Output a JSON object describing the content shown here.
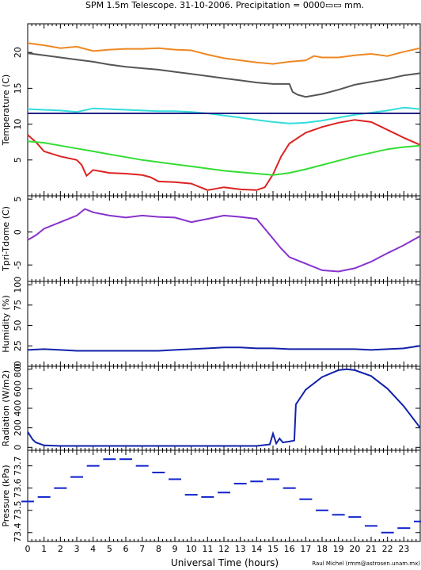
{
  "title": "SPM 1.5m Telescope. 31-10-2006. Precipitation = 0000▭▭ mm.",
  "xlabel": "Universal Time (hours)",
  "credit": "Raul Michel (rmm@astrosen.unam.mx)",
  "chart_data": [
    {
      "type": "line",
      "ylabel": "Temperature (C)",
      "xlim": [
        0,
        24
      ],
      "ylim": [
        0,
        24
      ],
      "yticks": [
        5,
        10,
        15,
        20
      ],
      "series": [
        {
          "color": "#ee8822",
          "x": [
            0,
            1,
            2,
            3,
            4,
            5,
            6,
            7,
            8,
            9,
            10,
            11,
            12,
            13,
            14,
            15,
            16,
            17,
            17.5,
            18,
            19,
            20,
            21,
            22,
            23,
            24
          ],
          "y": [
            21.3,
            21,
            20.6,
            20.8,
            20.2,
            20.4,
            20.5,
            20.5,
            20.6,
            20.4,
            20.3,
            19.7,
            19.2,
            18.9,
            18.6,
            18.4,
            18.7,
            18.9,
            19.5,
            19.3,
            19.3,
            19.6,
            19.8,
            19.5,
            20.1,
            20.6
          ]
        },
        {
          "color": "#555555",
          "x": [
            0,
            1,
            2,
            3,
            4,
            5,
            6,
            7,
            8,
            9,
            10,
            11,
            12,
            13,
            14,
            15,
            16,
            16.2,
            16.5,
            17,
            18,
            19,
            20,
            21,
            22,
            23,
            24
          ],
          "y": [
            19.9,
            19.6,
            19.3,
            19,
            18.7,
            18.3,
            18,
            17.8,
            17.6,
            17.3,
            17,
            16.7,
            16.4,
            16.1,
            15.8,
            15.6,
            15.6,
            14.5,
            14.1,
            13.8,
            14.2,
            14.8,
            15.5,
            15.9,
            16.3,
            16.8,
            17.1
          ]
        },
        {
          "color": "#33dddd",
          "x": [
            0,
            1,
            2,
            3,
            4,
            5,
            6,
            7,
            8,
            9,
            10,
            11,
            12,
            13,
            14,
            15,
            16,
            17,
            18,
            19,
            20,
            21,
            22,
            23,
            24
          ],
          "y": [
            12.1,
            12,
            11.9,
            11.7,
            12.2,
            12.1,
            12,
            11.9,
            11.8,
            11.8,
            11.7,
            11.5,
            11.2,
            10.9,
            10.6,
            10.3,
            10.1,
            10.2,
            10.5,
            10.9,
            11.3,
            11.6,
            11.9,
            12.3,
            12.1
          ]
        },
        {
          "color": "#222288",
          "x": [
            0,
            24
          ],
          "y": [
            11.5,
            11.5
          ]
        },
        {
          "color": "#dd2222",
          "x": [
            0,
            0.5,
            1,
            2,
            3,
            3.3,
            3.6,
            4,
            5,
            6,
            7,
            7.5,
            8,
            9,
            10,
            11,
            12,
            13,
            14,
            14.5,
            15,
            15.5,
            16,
            17,
            18,
            19,
            20,
            21,
            22,
            23,
            24
          ],
          "y": [
            8.5,
            7.5,
            6.2,
            5.5,
            5.0,
            4.3,
            2.8,
            3.6,
            3.2,
            3.1,
            2.9,
            2.6,
            2.0,
            1.9,
            1.7,
            0.8,
            1.2,
            0.9,
            0.8,
            1.2,
            3.0,
            5.5,
            7.3,
            8.8,
            9.6,
            10.2,
            10.6,
            10.3,
            9.2,
            8.1,
            7.1
          ]
        },
        {
          "color": "#33dd33",
          "x": [
            0,
            1,
            2,
            3,
            4,
            5,
            6,
            7,
            8,
            9,
            10,
            11,
            12,
            13,
            14,
            15,
            16,
            17,
            18,
            19,
            20,
            21,
            22,
            23,
            24
          ],
          "y": [
            7.6,
            7.4,
            7.0,
            6.6,
            6.2,
            5.8,
            5.4,
            5.0,
            4.7,
            4.4,
            4.1,
            3.8,
            3.5,
            3.3,
            3.1,
            2.9,
            3.2,
            3.7,
            4.3,
            4.9,
            5.5,
            6.0,
            6.5,
            6.8,
            7.0
          ]
        }
      ]
    },
    {
      "type": "line",
      "ylabel": "Tpri-Tdome (C)",
      "xlim": [
        0,
        24
      ],
      "ylim": [
        -7.5,
        5.5
      ],
      "yticks": [
        -5,
        0,
        5
      ],
      "series": [
        {
          "color": "#8833cc",
          "x": [
            0,
            0.5,
            1,
            2,
            3,
            3.5,
            4,
            5,
            6,
            7,
            8,
            9,
            10,
            11,
            12,
            13,
            14,
            15,
            15.5,
            16,
            17,
            18,
            19,
            20,
            21,
            22,
            23,
            24
          ],
          "y": [
            -1.2,
            -0.5,
            0.5,
            1.5,
            2.5,
            3.5,
            3,
            2.5,
            2.2,
            2.5,
            2.3,
            2.2,
            1.5,
            2.0,
            2.5,
            2.3,
            2.0,
            -1,
            -2.5,
            -3.8,
            -4.8,
            -5.8,
            -6.0,
            -5.5,
            -4.5,
            -3.2,
            -2,
            -0.6
          ]
        }
      ]
    },
    {
      "type": "line",
      "ylabel": "Humidity (%)",
      "xlim": [
        0,
        24
      ],
      "ylim": [
        0,
        104
      ],
      "yticks": [
        0,
        25,
        50,
        75,
        100
      ],
      "series": [
        {
          "color": "#1122aa",
          "x": [
            0,
            1,
            2,
            3,
            4,
            5,
            6,
            7,
            8,
            9,
            10,
            11,
            12,
            13,
            14,
            15,
            16,
            17,
            18,
            19,
            20,
            21,
            22,
            23,
            24
          ],
          "y": [
            20,
            21,
            20,
            19,
            19,
            19,
            19,
            19,
            19,
            20,
            21,
            22,
            23,
            23,
            22,
            22,
            21,
            21,
            21,
            21,
            21,
            20,
            21,
            22,
            25
          ]
        }
      ]
    },
    {
      "type": "line",
      "ylabel": "Radiation (W/m2)",
      "xlim": [
        0,
        24
      ],
      "ylim": [
        -30,
        830
      ],
      "yticks": [
        0,
        200,
        400,
        600,
        800
      ],
      "series": [
        {
          "color": "#1122aa",
          "x": [
            0,
            0.3,
            0.5,
            1,
            2,
            3,
            4,
            5,
            6,
            7,
            8,
            9,
            10,
            11,
            12,
            13,
            14,
            14.8,
            15,
            15.2,
            15.4,
            15.6,
            16,
            16.3,
            16.4,
            17,
            18,
            19,
            19.5,
            20,
            21,
            22,
            23,
            24
          ],
          "y": [
            160,
            80,
            50,
            20,
            15,
            15,
            15,
            15,
            15,
            15,
            15,
            15,
            15,
            15,
            15,
            15,
            15,
            30,
            140,
            40,
            90,
            50,
            60,
            70,
            440,
            590,
            720,
            790,
            800,
            790,
            730,
            600,
            420,
            200
          ]
        }
      ]
    },
    {
      "type": "scatter",
      "ylabel": "Pressure (kPa)",
      "xlim": [
        0,
        24
      ],
      "ylim": [
        73.36,
        73.77
      ],
      "yticks": [
        73.4,
        73.5,
        73.6,
        73.7
      ],
      "tick_labels": [
        "73.4",
        "73.5",
        "73.6",
        "73.7"
      ],
      "series": [
        {
          "color": "#1122cc",
          "x": [
            0,
            1,
            2,
            3,
            4,
            5,
            6,
            7,
            8,
            9,
            10,
            11,
            12,
            13,
            14,
            15,
            16,
            17,
            18,
            19,
            20,
            21,
            22,
            23,
            24
          ],
          "y": [
            73.54,
            73.56,
            73.6,
            73.65,
            73.7,
            73.73,
            73.73,
            73.7,
            73.67,
            73.64,
            73.57,
            73.56,
            73.58,
            73.62,
            73.63,
            73.64,
            73.6,
            73.55,
            73.5,
            73.48,
            73.47,
            73.43,
            73.4,
            73.42,
            73.45
          ]
        }
      ]
    }
  ],
  "xticks": [
    0,
    1,
    2,
    3,
    4,
    5,
    6,
    7,
    8,
    9,
    10,
    11,
    12,
    13,
    14,
    15,
    16,
    17,
    18,
    19,
    20,
    21,
    22,
    23
  ]
}
